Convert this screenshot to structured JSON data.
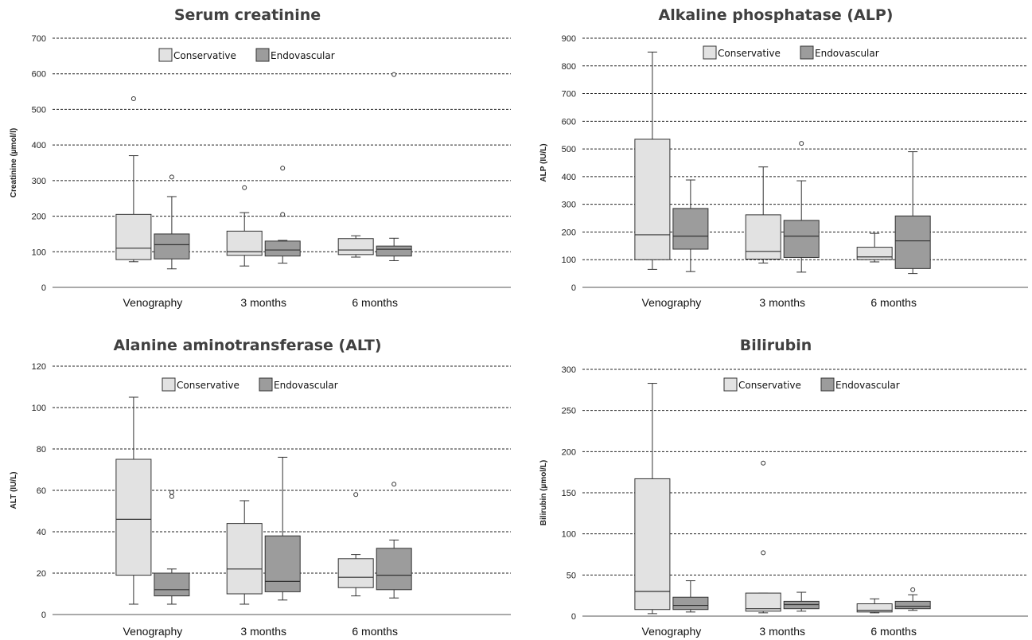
{
  "colors": {
    "conservative": "#e2e2e2",
    "endovascular": "#9c9c9c",
    "stroke": "#333333",
    "grid": "#222222"
  },
  "chart_data": [
    {
      "type": "box",
      "title": "Serum creatinine",
      "ylabel": "Creatinine (µmol/l)",
      "ylim": [
        0,
        700
      ],
      "yticks": [
        "0",
        "100",
        "200",
        "300",
        "400",
        "500",
        "600",
        "700"
      ],
      "categories": [
        "Venography",
        "3 months",
        "6 months"
      ],
      "legend": [
        "Conservative",
        "Endovascular"
      ],
      "grid": true,
      "series": [
        {
          "name": "Conservative",
          "boxes": [
            {
              "min": 72,
              "q1": 78,
              "median": 110,
              "q3": 205,
              "max": 370,
              "outliers": [
                530
              ]
            },
            {
              "min": 60,
              "q1": 90,
              "median": 100,
              "q3": 158,
              "max": 210,
              "outliers": [
                280
              ]
            },
            {
              "min": 85,
              "q1": 92,
              "median": 105,
              "q3": 137,
              "max": 145,
              "outliers": []
            }
          ]
        },
        {
          "name": "Endovascular",
          "boxes": [
            {
              "min": 52,
              "q1": 80,
              "median": 120,
              "q3": 150,
              "max": 255,
              "outliers": [
                310
              ]
            },
            {
              "min": 68,
              "q1": 88,
              "median": 105,
              "q3": 130,
              "max": 132,
              "outliers": [
                205,
                335
              ]
            },
            {
              "min": 75,
              "q1": 88,
              "median": 107,
              "q3": 116,
              "max": 138,
              "outliers": [
                598
              ]
            }
          ]
        }
      ]
    },
    {
      "type": "box",
      "title": "Alkaline phosphatase  (ALP)",
      "ylabel": "ALP (IU/L)",
      "ylim": [
        0,
        900
      ],
      "yticks": [
        "0",
        "100",
        "200",
        "300",
        "400",
        "500",
        "600",
        "700",
        "800",
        "900"
      ],
      "categories": [
        "Venography",
        "3 months",
        "6 months"
      ],
      "legend": [
        "Conservative",
        "Endovascular"
      ],
      "grid": true,
      "series": [
        {
          "name": "Conservative",
          "boxes": [
            {
              "min": 65,
              "q1": 100,
              "median": 190,
              "q3": 535,
              "max": 850,
              "outliers": []
            },
            {
              "min": 88,
              "q1": 102,
              "median": 130,
              "q3": 262,
              "max": 435,
              "outliers": []
            },
            {
              "min": 92,
              "q1": 100,
              "median": 110,
              "q3": 145,
              "max": 195,
              "outliers": []
            }
          ]
        },
        {
          "name": "Endovascular",
          "boxes": [
            {
              "min": 57,
              "q1": 138,
              "median": 185,
              "q3": 285,
              "max": 388,
              "outliers": []
            },
            {
              "min": 55,
              "q1": 108,
              "median": 185,
              "q3": 242,
              "max": 385,
              "outliers": [
                520
              ]
            },
            {
              "min": 50,
              "q1": 68,
              "median": 168,
              "q3": 258,
              "max": 490,
              "outliers": []
            }
          ]
        }
      ]
    },
    {
      "type": "box",
      "title": "Alanine aminotransferase  (ALT)",
      "ylabel": "ALT (IU/L)",
      "ylim": [
        0,
        120
      ],
      "yticks": [
        "0",
        "20",
        "40",
        "60",
        "80",
        "100",
        "120"
      ],
      "categories": [
        "Venography",
        "3 months",
        "6 months"
      ],
      "legend": [
        "Conservative",
        "Endovascular"
      ],
      "grid": true,
      "series": [
        {
          "name": "Conservative",
          "boxes": [
            {
              "min": 5,
              "q1": 19,
              "median": 46,
              "q3": 75,
              "max": 105,
              "outliers": []
            },
            {
              "min": 5,
              "q1": 10,
              "median": 22,
              "q3": 44,
              "max": 55,
              "outliers": []
            },
            {
              "min": 9,
              "q1": 13,
              "median": 18,
              "q3": 27,
              "max": 29,
              "outliers": [
                58
              ]
            }
          ]
        },
        {
          "name": "Endovascular",
          "boxes": [
            {
              "min": 5,
              "q1": 9,
              "median": 12,
              "q3": 20,
              "max": 22,
              "outliers": [
                57,
                59
              ]
            },
            {
              "min": 7,
              "q1": 11,
              "median": 16,
              "q3": 38,
              "max": 76,
              "outliers": []
            },
            {
              "min": 8,
              "q1": 12,
              "median": 19,
              "q3": 32,
              "max": 36,
              "outliers": [
                63
              ]
            }
          ]
        }
      ]
    },
    {
      "type": "box",
      "title": "Bilirubin",
      "ylabel": "Bilirubin  (µmol/L)",
      "ylim": [
        0,
        300
      ],
      "yticks": [
        "0",
        "50",
        "100",
        "150",
        "200",
        "250",
        "300"
      ],
      "categories": [
        "Venography",
        "3 months",
        "6 months"
      ],
      "legend": [
        "Conservative",
        "Endovascular"
      ],
      "grid": true,
      "series": [
        {
          "name": "Conservative",
          "boxes": [
            {
              "min": 3,
              "q1": 8,
              "median": 30,
              "q3": 167,
              "max": 283,
              "outliers": []
            },
            {
              "min": 4,
              "q1": 6,
              "median": 9,
              "q3": 28,
              "max": 28,
              "outliers": [
                77,
                186
              ]
            },
            {
              "min": 4,
              "q1": 5,
              "median": 7,
              "q3": 15,
              "max": 21,
              "outliers": []
            }
          ]
        },
        {
          "name": "Endovascular",
          "boxes": [
            {
              "min": 5,
              "q1": 8,
              "median": 13,
              "q3": 23,
              "max": 43,
              "outliers": []
            },
            {
              "min": 6,
              "q1": 9,
              "median": 14,
              "q3": 18,
              "max": 29,
              "outliers": []
            },
            {
              "min": 7,
              "q1": 9,
              "median": 12,
              "q3": 18,
              "max": 26,
              "outliers": [
                32
              ]
            }
          ]
        }
      ]
    }
  ]
}
